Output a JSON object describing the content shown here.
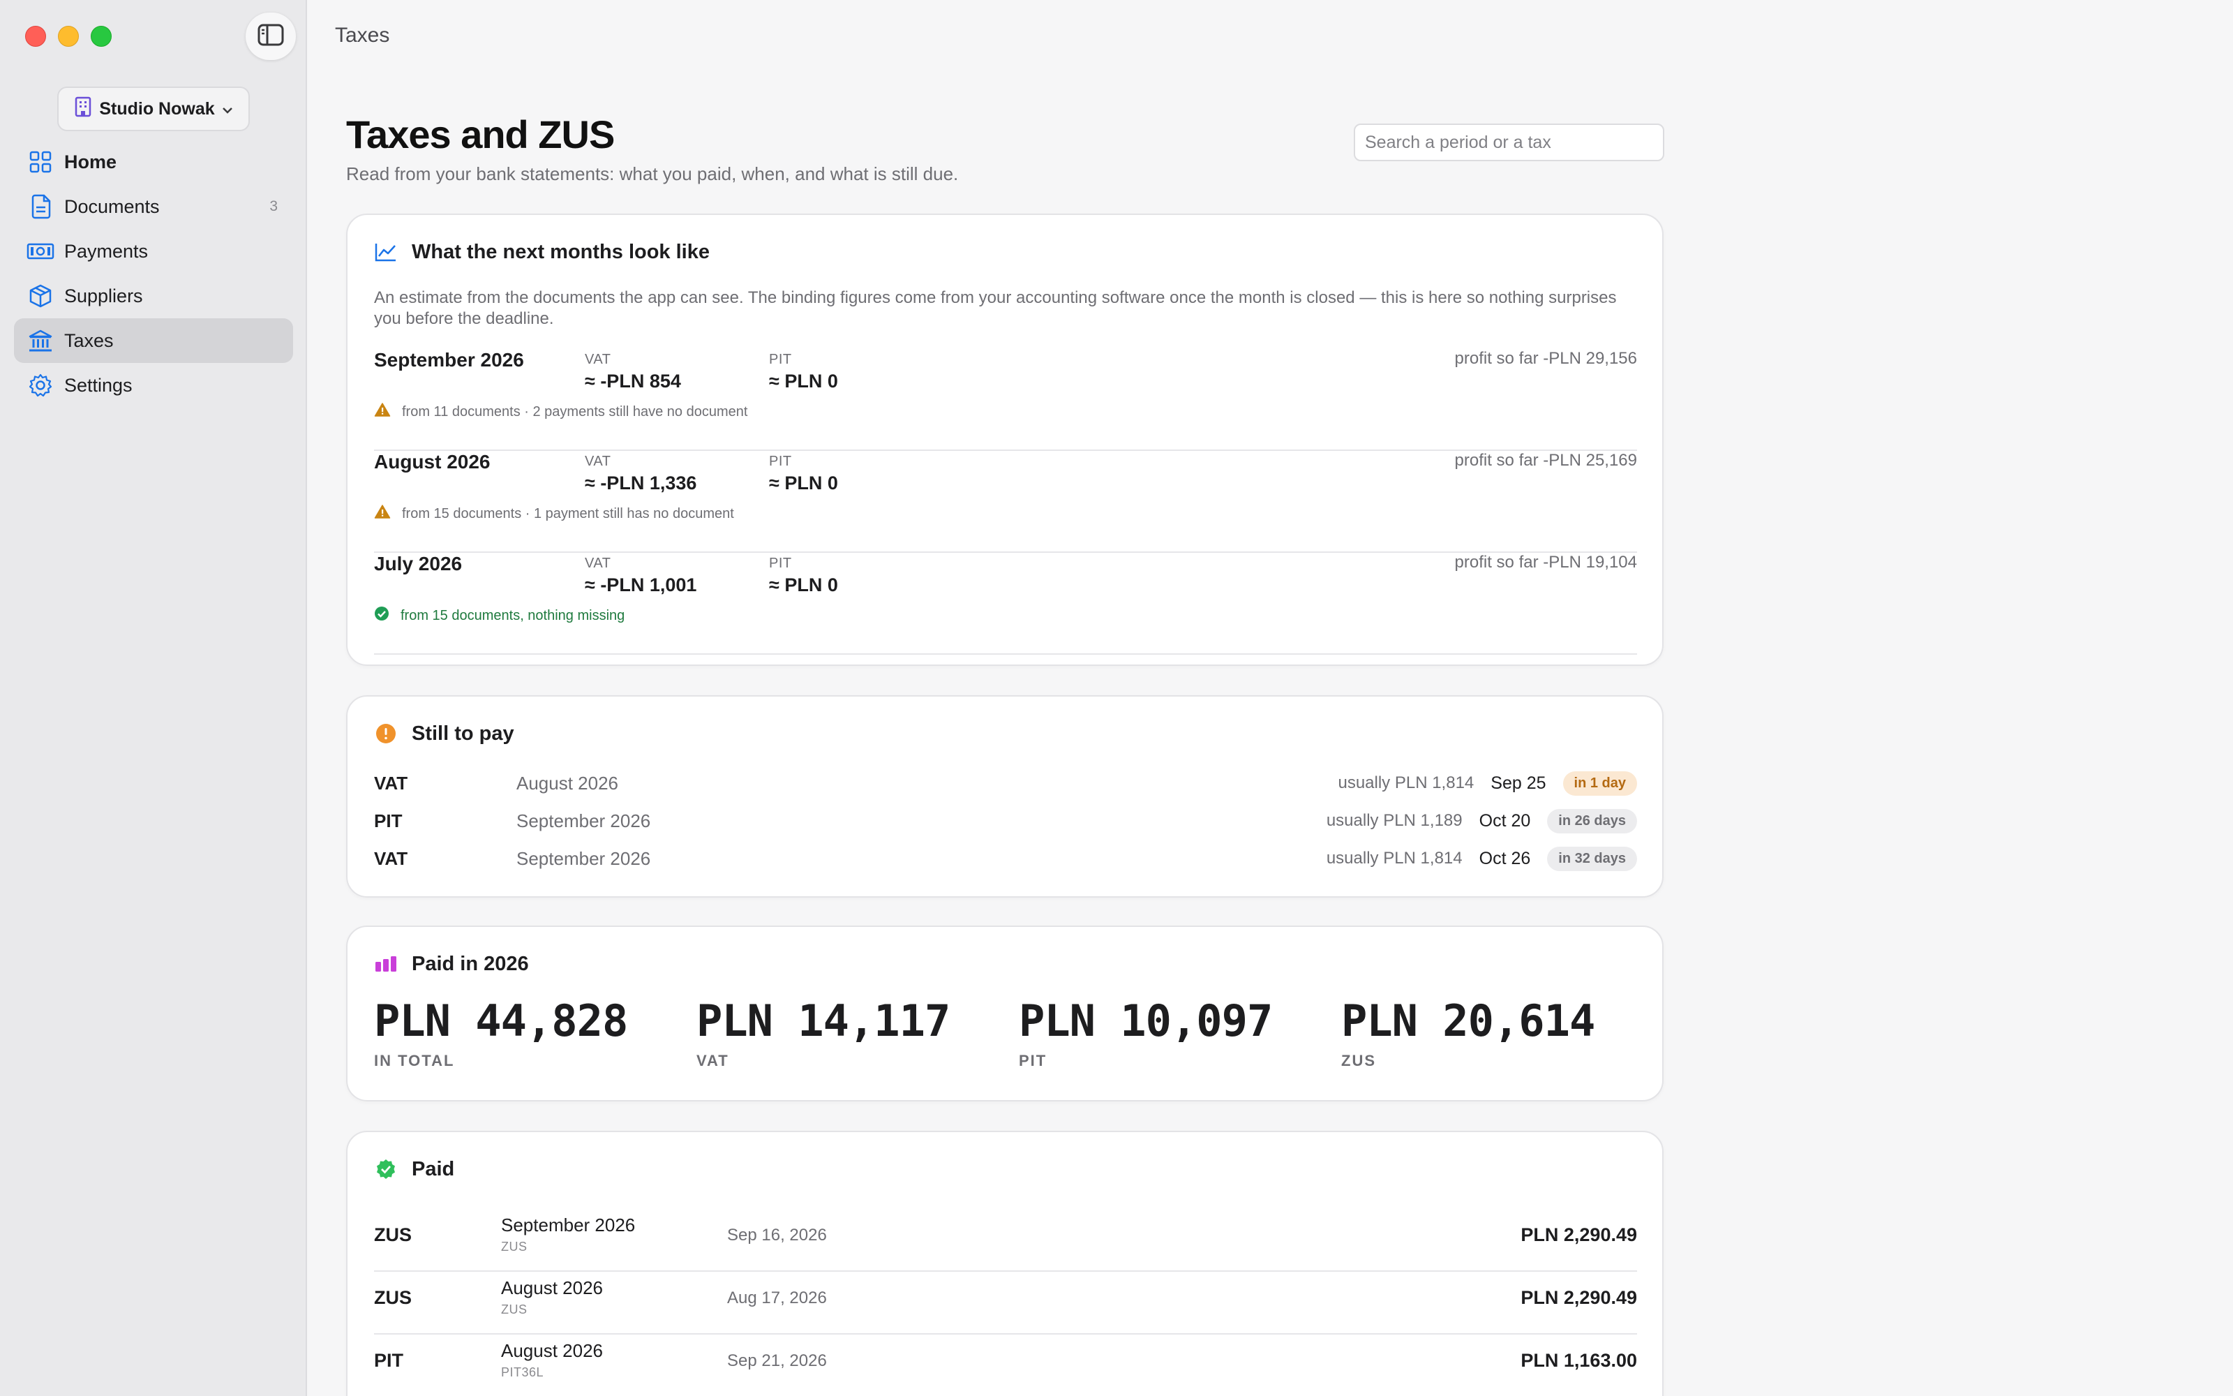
{
  "window": {
    "title": "Taxes"
  },
  "sidebar": {
    "org_name": "Studio Nowak",
    "items": [
      {
        "label": "Home",
        "icon": "grid-icon"
      },
      {
        "label": "Documents",
        "icon": "documents-icon",
        "badge": "3"
      },
      {
        "label": "Payments",
        "icon": "banknote-icon"
      },
      {
        "label": "Suppliers",
        "icon": "box-icon"
      },
      {
        "label": "Taxes",
        "icon": "bank-icon",
        "active": true
      },
      {
        "label": "Settings",
        "icon": "gear-icon"
      }
    ]
  },
  "page": {
    "title": "Taxes and ZUS",
    "subtitle": "Read from your bank statements: what you paid, when, and what is still due.",
    "search_placeholder": "Search a period or a tax"
  },
  "forecast": {
    "title": "What the next months look like",
    "description": "An estimate from the documents the app can see. The binding figures come from your accounting software once the month is closed — this is here so nothing surprises you before the deadline.",
    "vat_label": "VAT",
    "pit_label": "PIT",
    "months": [
      {
        "name": "September 2026",
        "vat": "≈ -PLN 854",
        "pit": "≈ PLN 0",
        "profit": "profit so far -PLN 29,156",
        "note": "from 11 documents · 2 payments still have no document",
        "status": "warning"
      },
      {
        "name": "August 2026",
        "vat": "≈ -PLN 1,336",
        "pit": "≈ PLN 0",
        "profit": "profit so far -PLN 25,169",
        "note": "from 15 documents · 1 payment still has no document",
        "status": "warning"
      },
      {
        "name": "July 2026",
        "vat": "≈ -PLN 1,001",
        "pit": "≈ PLN 0",
        "profit": "profit so far -PLN 19,104",
        "note": "from 15 documents, nothing missing",
        "status": "ok"
      }
    ]
  },
  "still_to_pay": {
    "title": "Still to pay",
    "rows": [
      {
        "kind": "VAT",
        "period": "August 2026",
        "usual": "usually PLN 1,814",
        "due": "Sep 25",
        "in": "in 1 day",
        "urgent": true
      },
      {
        "kind": "PIT",
        "period": "September 2026",
        "usual": "usually PLN 1,189",
        "due": "Oct 20",
        "in": "in 26 days",
        "urgent": false
      },
      {
        "kind": "VAT",
        "period": "September 2026",
        "usual": "usually PLN 1,814",
        "due": "Oct 26",
        "in": "in 32 days",
        "urgent": false
      }
    ]
  },
  "paid_year": {
    "title": "Paid in 2026",
    "stats": [
      {
        "amount": "PLN 44,828",
        "caption": "IN TOTAL"
      },
      {
        "amount": "PLN 14,117",
        "caption": "VAT"
      },
      {
        "amount": "PLN 10,097",
        "caption": "PIT"
      },
      {
        "amount": "PLN 20,614",
        "caption": "ZUS"
      }
    ]
  },
  "paid": {
    "title": "Paid",
    "rows": [
      {
        "kind": "ZUS",
        "period": "September 2026",
        "sub": "ZUS",
        "date": "Sep 16, 2026",
        "amount": "PLN 2,290.49"
      },
      {
        "kind": "ZUS",
        "period": "August 2026",
        "sub": "ZUS",
        "date": "Aug 17, 2026",
        "amount": "PLN 2,290.49"
      },
      {
        "kind": "PIT",
        "period": "August 2026",
        "sub": "PIT36L",
        "date": "Sep 21, 2026",
        "amount": "PLN 1,163.00"
      }
    ]
  },
  "colors": {
    "accent": "#1a73e8",
    "warning": "#d28a10",
    "ok": "#1f9d55",
    "urgent_pill_bg": "#fbe8d2",
    "urgent_pill_text": "#b46a12",
    "still_to_pay_icon": "#f0922b",
    "paid_year_icon": "#c93fd9",
    "paid_icon": "#2fbf5b"
  }
}
